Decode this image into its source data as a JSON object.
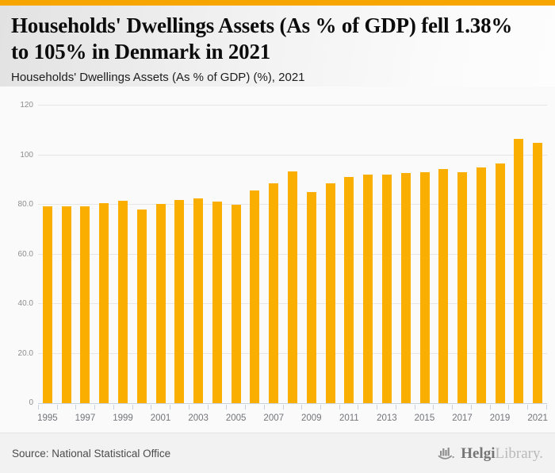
{
  "theme": {
    "accent_strip": "#F7A600",
    "bar_color": "#FAAF00",
    "axis_color": "#C9D2E0",
    "grid_color": "#E6E6E6"
  },
  "header": {
    "title_line1": "Households' Dwellings Assets (As % of GDP) fell 1.38%",
    "title_line2": "to 105% in Denmark in 2021",
    "subtitle": "Households' Dwellings Assets (As % of GDP) (%), 2021"
  },
  "chart_data": {
    "type": "bar",
    "title": "Households' Dwellings Assets (As % of GDP) (%), 2021",
    "xlabel": "",
    "ylabel": "",
    "ylim": [
      0,
      120
    ],
    "grid": true,
    "categories": [
      "1995",
      "1996",
      "1997",
      "1998",
      "1999",
      "2000",
      "2001",
      "2002",
      "2003",
      "2004",
      "2005",
      "2006",
      "2007",
      "2008",
      "2009",
      "2010",
      "2011",
      "2012",
      "2013",
      "2014",
      "2015",
      "2016",
      "2017",
      "2018",
      "2019",
      "2020",
      "2021"
    ],
    "values": [
      79.3,
      79.5,
      79.4,
      80.6,
      81.6,
      78.2,
      80.4,
      82.0,
      82.6,
      81.4,
      80.0,
      85.9,
      88.7,
      93.3,
      85.1,
      88.5,
      91.3,
      92.2,
      92.3,
      92.7,
      93.2,
      94.3,
      93.2,
      95.2,
      96.7,
      106.5,
      105.0
    ],
    "yticks": [
      {
        "value": 0,
        "label": "0"
      },
      {
        "value": 20,
        "label": "20.0"
      },
      {
        "value": 40,
        "label": "40.0"
      },
      {
        "value": 60,
        "label": "60.0"
      },
      {
        "value": 80,
        "label": "80.0"
      },
      {
        "value": 100,
        "label": "100"
      },
      {
        "value": 120,
        "label": "120"
      }
    ],
    "xtick_labels": [
      "1995",
      "1997",
      "1999",
      "2001",
      "2003",
      "2005",
      "2007",
      "2009",
      "2011",
      "2013",
      "2015",
      "2017",
      "2019",
      "2021"
    ]
  },
  "footer": {
    "source": "Source: National Statistical Office",
    "brand": {
      "name": "Helgi",
      "suffix": "Library."
    }
  }
}
